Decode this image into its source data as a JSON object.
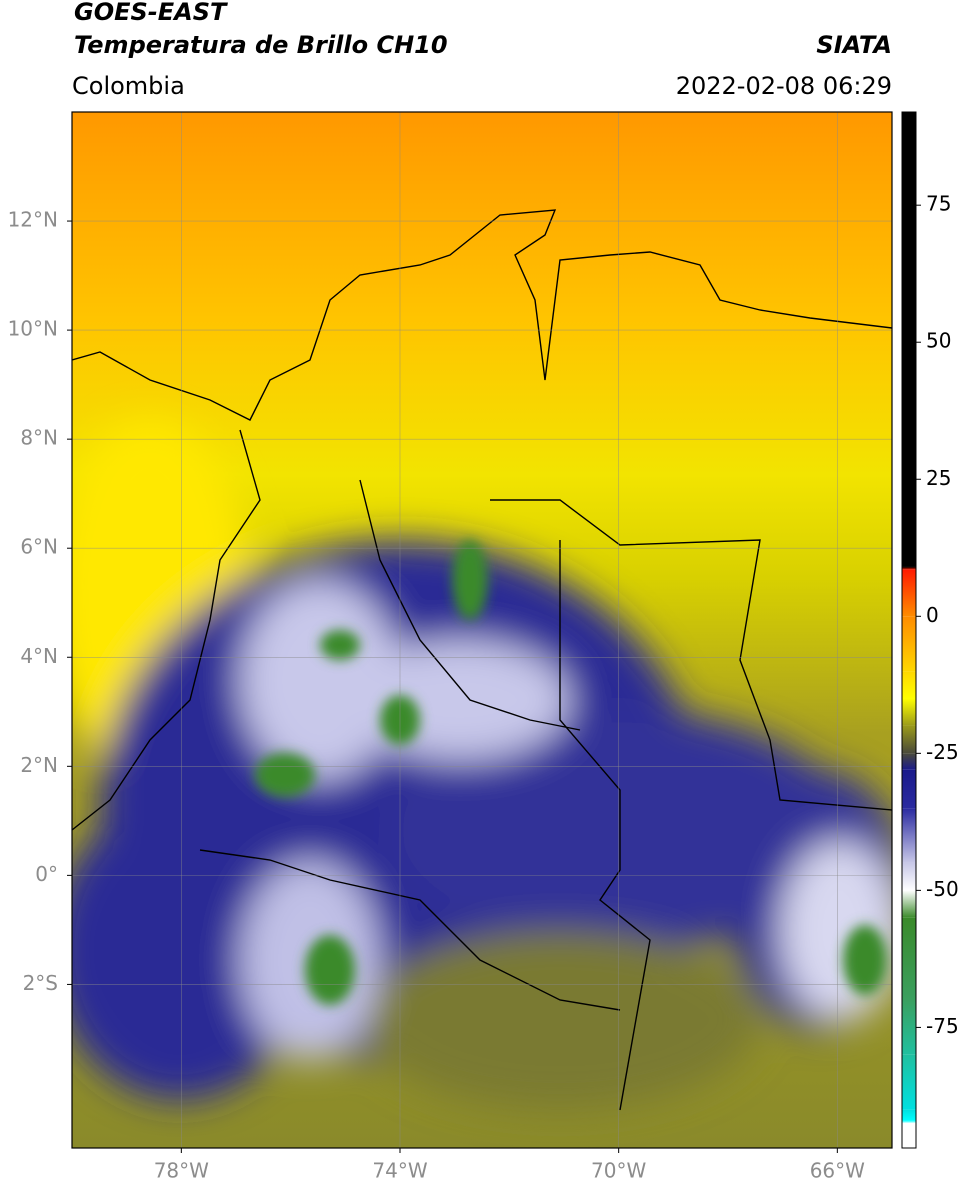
{
  "header": {
    "title": "GOES-EAST",
    "subtitle": "Temperatura de Brillo CH10",
    "source": "SIATA",
    "region": "Colombia",
    "timestamp": "2022-02-08 06:29"
  },
  "map": {
    "xlim": [
      -80,
      -65
    ],
    "ylim": [
      -5,
      14
    ],
    "xticks": [
      {
        "value": -78,
        "label": "78°W"
      },
      {
        "value": -74,
        "label": "74°W"
      },
      {
        "value": -70,
        "label": "70°W"
      },
      {
        "value": -66,
        "label": "66°W"
      }
    ],
    "yticks": [
      {
        "value": 12,
        "label": "12°N"
      },
      {
        "value": 10,
        "label": "10°N"
      },
      {
        "value": 8,
        "label": "8°N"
      },
      {
        "value": 6,
        "label": "6°N"
      },
      {
        "value": 4,
        "label": "4°N"
      },
      {
        "value": 2,
        "label": "2°N"
      },
      {
        "value": 0,
        "label": "0°"
      },
      {
        "value": -2,
        "label": "2°S"
      }
    ],
    "grid": true
  },
  "colorbar": {
    "lim": [
      -97,
      92
    ],
    "ticks": [
      75,
      50,
      25,
      0,
      -25,
      -50,
      -75
    ],
    "stops": [
      {
        "value": 92,
        "color": "#000000"
      },
      {
        "value": 9,
        "color": "#000000"
      },
      {
        "value": 8.5,
        "color": "#ff1a00"
      },
      {
        "value": 0,
        "color": "#ff8c00"
      },
      {
        "value": -10,
        "color": "#ffd700"
      },
      {
        "value": -15,
        "color": "#ffff00"
      },
      {
        "value": -20,
        "color": "#9a9a1a"
      },
      {
        "value": -25,
        "color": "#4a4a3a"
      },
      {
        "value": -28,
        "color": "#1a1a8a"
      },
      {
        "value": -35,
        "color": "#2a2aa0"
      },
      {
        "value": -45,
        "color": "#c8c8e8"
      },
      {
        "value": -50,
        "color": "#ffffff"
      },
      {
        "value": -55,
        "color": "#3a8a2a"
      },
      {
        "value": -70,
        "color": "#3aa060"
      },
      {
        "value": -80,
        "color": "#20c0a0"
      },
      {
        "value": -90,
        "color": "#00e0e0"
      },
      {
        "value": -92,
        "color": "#00ffff"
      },
      {
        "value": -92.5,
        "color": "#ffffff"
      },
      {
        "value": -97,
        "color": "#ffffff"
      }
    ]
  }
}
